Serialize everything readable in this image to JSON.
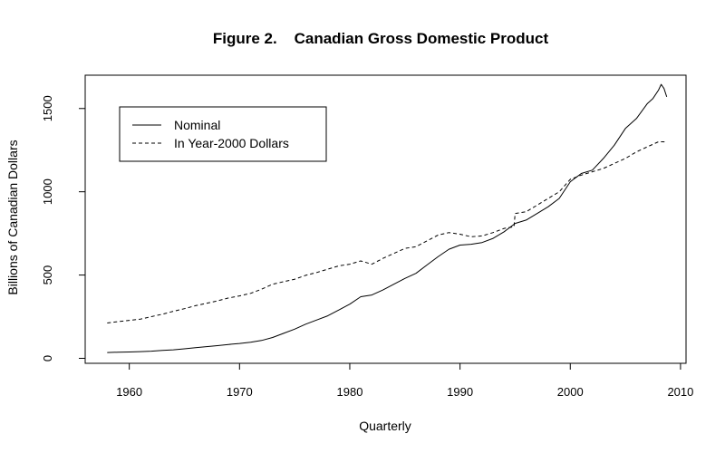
{
  "chart_data": {
    "type": "line",
    "title": "Figure 2.    Canadian Gross Domestic Product",
    "xlabel": "Quarterly",
    "ylabel": "Billions of Canadian Dollars",
    "xlim": [
      1956,
      2010.5
    ],
    "ylim": [
      -30,
      1700
    ],
    "x_ticks": [
      1960,
      1970,
      1980,
      1990,
      2000,
      2010
    ],
    "y_ticks": [
      0,
      500,
      1000,
      1500
    ],
    "grid": false,
    "legend": {
      "position": "top-left"
    },
    "series": [
      {
        "name": "Nominal",
        "line_style": "solid",
        "color": "#000000",
        "x": [
          1958,
          1959,
          1960,
          1961,
          1962,
          1963,
          1964,
          1965,
          1966,
          1967,
          1968,
          1969,
          1970,
          1971,
          1972,
          1973,
          1974,
          1975,
          1976,
          1977,
          1978,
          1979,
          1980,
          1981,
          1982,
          1983,
          1984,
          1985,
          1986,
          1987,
          1988,
          1989,
          1990,
          1991,
          1992,
          1993,
          1994,
          1995,
          1996,
          1997,
          1998,
          1999,
          2000,
          2001,
          2002,
          2003,
          2004,
          2005,
          2006,
          2007,
          2007.5,
          2008,
          2008.25,
          2008.5,
          2008.75
        ],
        "values": [
          35,
          37,
          38,
          40,
          43,
          47,
          51,
          57,
          64,
          70,
          76,
          83,
          89,
          97,
          107,
          125,
          150,
          175,
          205,
          230,
          255,
          290,
          325,
          370,
          380,
          410,
          445,
          480,
          510,
          560,
          610,
          655,
          680,
          685,
          695,
          720,
          760,
          810,
          830,
          870,
          910,
          960,
          1060,
          1110,
          1130,
          1200,
          1280,
          1380,
          1440,
          1530,
          1560,
          1610,
          1645,
          1620,
          1570
        ]
      },
      {
        "name": "In Year-2000 Dollars",
        "line_style": "dashed",
        "color": "#000000",
        "x": [
          1958,
          1959,
          1960,
          1961,
          1962,
          1963,
          1964,
          1965,
          1966,
          1967,
          1968,
          1969,
          1970,
          1971,
          1972,
          1973,
          1974,
          1975,
          1976,
          1977,
          1978,
          1979,
          1980,
          1981,
          1982,
          1983,
          1984,
          1985,
          1986,
          1987,
          1988,
          1989,
          1990,
          1991,
          1992,
          1993,
          1994,
          1994.9,
          1995,
          1996,
          1997,
          1998,
          1999,
          2000,
          2001,
          2002,
          2003,
          2004,
          2005,
          2006,
          2007,
          2008,
          2008.5,
          2008.75
        ],
        "values": [
          212,
          220,
          228,
          235,
          250,
          265,
          282,
          298,
          316,
          330,
          345,
          362,
          375,
          390,
          415,
          445,
          460,
          475,
          498,
          515,
          535,
          555,
          565,
          585,
          565,
          600,
          630,
          660,
          670,
          705,
          740,
          755,
          745,
          730,
          735,
          755,
          780,
          790,
          870,
          880,
          920,
          960,
          1000,
          1075,
          1100,
          1120,
          1140,
          1170,
          1200,
          1240,
          1270,
          1300,
          1300,
          1290
        ]
      }
    ]
  }
}
